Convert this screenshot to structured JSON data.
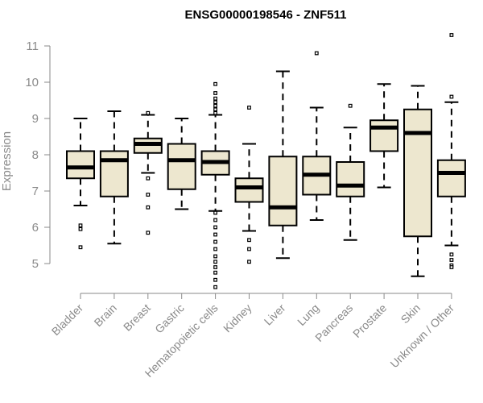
{
  "chart_data": {
    "type": "box",
    "title": "ENSG00000198546 - ZNF511",
    "xlabel": "",
    "ylabel": "Expression",
    "ylim": [
      4.4,
      11.4
    ],
    "yticks": [
      5,
      6,
      7,
      8,
      9,
      10,
      11
    ],
    "grid": false,
    "legend": "none",
    "colors": {
      "box_fill": "#ede7cf",
      "box_stroke": "#000000",
      "axis": "#8a8a8a",
      "text": "#8a8a8a"
    },
    "categories": [
      "Bladder",
      "Brain",
      "Breast",
      "Gastric",
      "Hematopoietic cells",
      "Kidney",
      "Liver",
      "Lung",
      "Pancreas",
      "Prostate",
      "Skin",
      "Unknown / Other"
    ],
    "series": [
      {
        "category": "Bladder",
        "whisker_low": 6.6,
        "q1": 7.35,
        "median": 7.65,
        "q3": 8.1,
        "whisker_high": 9.0,
        "outliers": [
          6.05,
          5.95,
          5.45
        ]
      },
      {
        "category": "Brain",
        "whisker_low": 5.55,
        "q1": 6.85,
        "median": 7.85,
        "q3": 8.1,
        "whisker_high": 9.2,
        "outliers": []
      },
      {
        "category": "Breast",
        "whisker_low": 7.5,
        "q1": 8.05,
        "median": 8.3,
        "q3": 8.45,
        "whisker_high": 9.1,
        "outliers": [
          9.15,
          7.35,
          6.9,
          6.55,
          5.85
        ]
      },
      {
        "category": "Gastric",
        "whisker_low": 6.5,
        "q1": 7.05,
        "median": 7.85,
        "q3": 8.3,
        "whisker_high": 9.0,
        "outliers": []
      },
      {
        "category": "Hematopoietic cells",
        "whisker_low": 6.45,
        "q1": 7.45,
        "median": 7.8,
        "q3": 8.1,
        "whisker_high": 9.1,
        "outliers": [
          9.95,
          9.7,
          9.55,
          9.45,
          9.35,
          9.25,
          9.15,
          6.4,
          6.2,
          6.0,
          5.8,
          5.6,
          5.4,
          5.2,
          5.05,
          4.9,
          4.75,
          4.55,
          4.35
        ]
      },
      {
        "category": "Kidney",
        "whisker_low": 5.9,
        "q1": 6.7,
        "median": 7.1,
        "q3": 7.35,
        "whisker_high": 8.3,
        "outliers": [
          9.3,
          5.65,
          5.4,
          5.05
        ]
      },
      {
        "category": "Liver",
        "whisker_low": 5.15,
        "q1": 6.05,
        "median": 6.55,
        "q3": 7.95,
        "whisker_high": 10.3,
        "outliers": []
      },
      {
        "category": "Lung",
        "whisker_low": 6.2,
        "q1": 6.9,
        "median": 7.45,
        "q3": 7.95,
        "whisker_high": 9.3,
        "outliers": [
          10.8
        ]
      },
      {
        "category": "Pancreas",
        "whisker_low": 5.65,
        "q1": 6.85,
        "median": 7.15,
        "q3": 7.8,
        "whisker_high": 8.75,
        "outliers": [
          9.35
        ]
      },
      {
        "category": "Prostate",
        "whisker_low": 7.1,
        "q1": 8.1,
        "median": 8.75,
        "q3": 8.95,
        "whisker_high": 9.95,
        "outliers": []
      },
      {
        "category": "Skin",
        "whisker_low": 4.65,
        "q1": 5.75,
        "median": 8.6,
        "q3": 9.25,
        "whisker_high": 9.9,
        "outliers": []
      },
      {
        "category": "Unknown / Other",
        "whisker_low": 5.5,
        "q1": 6.85,
        "median": 7.5,
        "q3": 7.85,
        "whisker_high": 9.45,
        "outliers": [
          11.3,
          9.6,
          5.25,
          5.1,
          4.95,
          4.9
        ]
      }
    ]
  }
}
